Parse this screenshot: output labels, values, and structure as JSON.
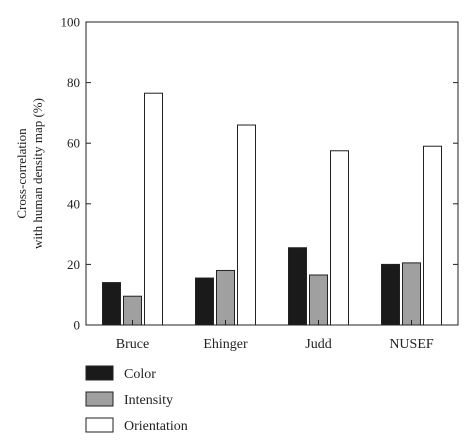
{
  "chart_data": {
    "type": "bar",
    "title": "",
    "xlabel": "",
    "ylabel_lines": [
      "Cross-correlation",
      "with human density map (%)"
    ],
    "categories": [
      "Bruce",
      "Ehinger",
      "Judd",
      "NUSEF"
    ],
    "series": [
      {
        "name": "Color",
        "values": [
          14,
          15.5,
          25.5,
          20
        ],
        "color": "#1a1a1a"
      },
      {
        "name": "Intensity",
        "values": [
          9.5,
          18,
          16.5,
          20.5
        ],
        "color": "#a0a0a0"
      },
      {
        "name": "Orientation",
        "values": [
          76.5,
          66,
          57.5,
          59
        ],
        "color": "#ffffff"
      }
    ],
    "ylim": [
      0,
      100
    ],
    "yticks": [
      "0",
      "20",
      "40",
      "60",
      "80",
      "100"
    ],
    "grid": false,
    "legend_position": "bottom-left"
  }
}
